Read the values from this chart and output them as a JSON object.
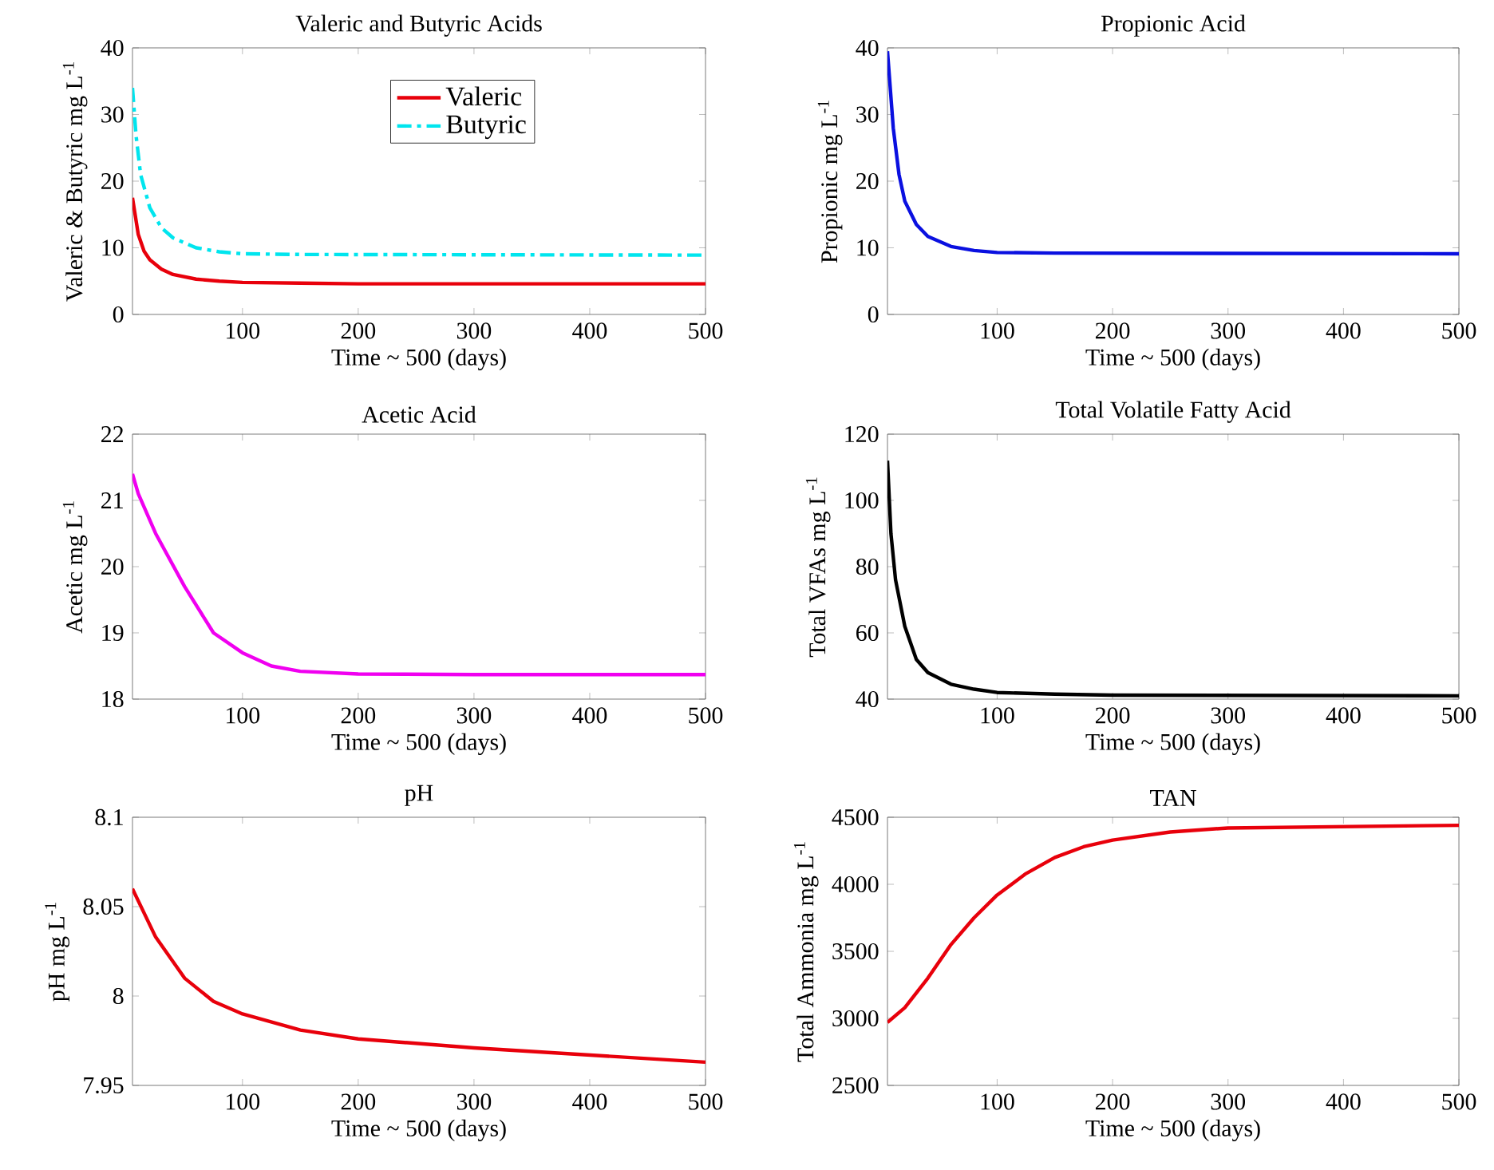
{
  "chart_data": [
    {
      "type": "line",
      "title": "Valeric and Butyric Acids",
      "xlabel": "Time ~ 500 (days)",
      "ylabel": "Valeric & Butyric mg L$^{-1}$",
      "xlim": [
        5,
        500
      ],
      "xticks": [
        100,
        200,
        300,
        400,
        500
      ],
      "ylim": [
        0,
        40
      ],
      "yticks": [
        0,
        10,
        20,
        30,
        40
      ],
      "legend": "top right",
      "series": [
        {
          "name": "Valeric",
          "color": "#e8000b",
          "line_style": "solid",
          "x": [
            5,
            10,
            15,
            20,
            30,
            40,
            60,
            80,
            100,
            150,
            200,
            300,
            500
          ],
          "values": [
            17.5,
            12,
            9.5,
            8.2,
            6.8,
            6,
            5.3,
            5,
            4.8,
            4.7,
            4.6,
            4.6,
            4.6
          ]
        },
        {
          "name": "Butyric",
          "color": "#00e5ee",
          "line_style": "dashed",
          "x": [
            5,
            8,
            12,
            20,
            30,
            40,
            60,
            80,
            100,
            150,
            500
          ],
          "values": [
            34,
            27,
            21,
            16,
            13,
            11.5,
            10,
            9.4,
            9.1,
            9,
            8.9
          ]
        }
      ]
    },
    {
      "type": "line",
      "title": "Propionic Acid",
      "xlabel": "Time ~ 500 (days)",
      "ylabel": "Propionic mg L$^{-1}$",
      "xlim": [
        5,
        500
      ],
      "xticks": [
        100,
        200,
        300,
        400,
        500
      ],
      "ylim": [
        0,
        40
      ],
      "yticks": [
        0,
        10,
        20,
        30,
        40
      ],
      "series": [
        {
          "color": "#0a10e0",
          "x": [
            5,
            10,
            15,
            20,
            30,
            40,
            60,
            80,
            100,
            150,
            500
          ],
          "values": [
            39.5,
            28,
            21,
            17,
            13.5,
            11.7,
            10.2,
            9.6,
            9.3,
            9.2,
            9.1
          ]
        }
      ]
    },
    {
      "type": "line",
      "title": "Acetic Acid",
      "xlabel": "Time ~ 500 (days)",
      "ylabel": "Acetic mg L$^{-1}$",
      "xlim": [
        5,
        500
      ],
      "xticks": [
        100,
        200,
        300,
        400,
        500
      ],
      "ylim": [
        18,
        22
      ],
      "yticks": [
        18,
        19,
        20,
        21,
        22
      ],
      "series": [
        {
          "color": "#f000f0",
          "x": [
            5,
            10,
            25,
            50,
            75,
            100,
            125,
            150,
            200,
            300,
            500
          ],
          "values": [
            21.4,
            21.1,
            20.5,
            19.7,
            19.0,
            18.7,
            18.5,
            18.42,
            18.38,
            18.37,
            18.37
          ]
        }
      ]
    },
    {
      "type": "line",
      "title": "Total Volatile Fatty Acid",
      "xlabel": "Time ~ 500 (days)",
      "ylabel": "Total VFAs  mg L$^{-1}$",
      "xlim": [
        5,
        500
      ],
      "xticks": [
        100,
        200,
        300,
        400,
        500
      ],
      "ylim": [
        40,
        120
      ],
      "yticks": [
        40,
        60,
        80,
        100,
        120
      ],
      "series": [
        {
          "color": "#000000",
          "x": [
            5,
            8,
            12,
            20,
            30,
            40,
            60,
            80,
            100,
            150,
            200,
            500
          ],
          "values": [
            112,
            90,
            76,
            62,
            52,
            48,
            44.5,
            43,
            42,
            41.5,
            41.2,
            41
          ]
        }
      ]
    },
    {
      "type": "line",
      "title": "pH",
      "xlabel": "Time ~ 500 (days)",
      "ylabel": "pH mg L$^{-1}$",
      "xlim": [
        5,
        500
      ],
      "xticks": [
        100,
        200,
        300,
        400,
        500
      ],
      "ylim": [
        7.95,
        8.1
      ],
      "yticks": [
        7.95,
        8,
        8.05,
        8.1
      ],
      "series": [
        {
          "color": "#e8000b",
          "x": [
            5,
            25,
            50,
            75,
            100,
            150,
            200,
            300,
            400,
            500
          ],
          "values": [
            8.06,
            8.033,
            8.01,
            7.997,
            7.99,
            7.981,
            7.976,
            7.971,
            7.967,
            7.963
          ]
        }
      ]
    },
    {
      "type": "line",
      "title": "TAN",
      "xlabel": "Time ~ 500 (days)",
      "ylabel": "Total Ammonia mg L$^{-1}$",
      "xlim": [
        5,
        500
      ],
      "xticks": [
        100,
        200,
        300,
        400,
        500
      ],
      "ylim": [
        2500,
        4500
      ],
      "yticks": [
        2500,
        3000,
        3500,
        4000,
        4500
      ],
      "series": [
        {
          "color": "#e8000b",
          "x": [
            5,
            20,
            40,
            60,
            80,
            100,
            125,
            150,
            175,
            200,
            250,
            300,
            400,
            500
          ],
          "values": [
            2970,
            3080,
            3300,
            3550,
            3750,
            3920,
            4080,
            4200,
            4280,
            4330,
            4390,
            4420,
            4430,
            4440
          ]
        }
      ]
    }
  ]
}
